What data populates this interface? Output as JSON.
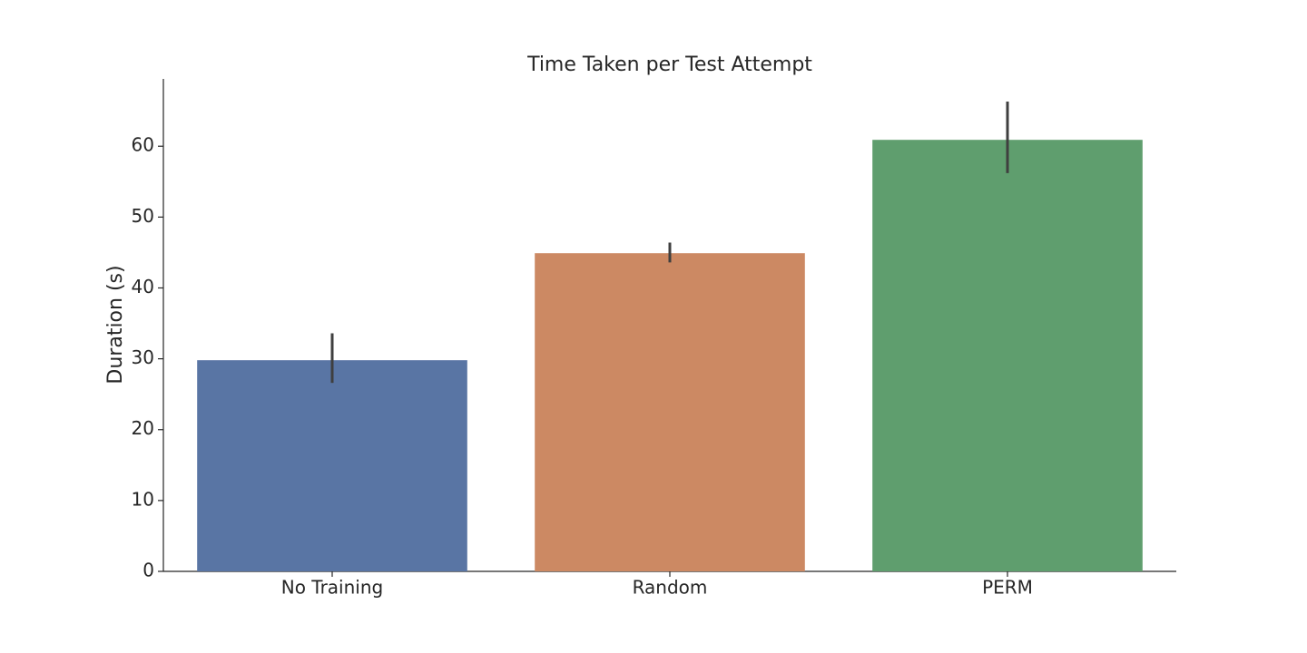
{
  "chart_data": {
    "type": "bar",
    "title": "Time Taken per Test Attempt",
    "y_label": "Duration (s)",
    "categories": [
      "No Training",
      "Random",
      "PERM"
    ],
    "values": [
      29.8,
      44.9,
      60.9
    ],
    "ci_low": [
      26.6,
      43.6,
      56.2
    ],
    "ci_high": [
      33.6,
      46.4,
      66.3
    ],
    "colors": [
      "#5975a4",
      "#cc8963",
      "#5f9e6e"
    ],
    "ylim": [
      0,
      69.5
    ],
    "yticks": [
      0,
      10,
      20,
      30,
      40,
      50,
      60
    ],
    "grid": false
  }
}
